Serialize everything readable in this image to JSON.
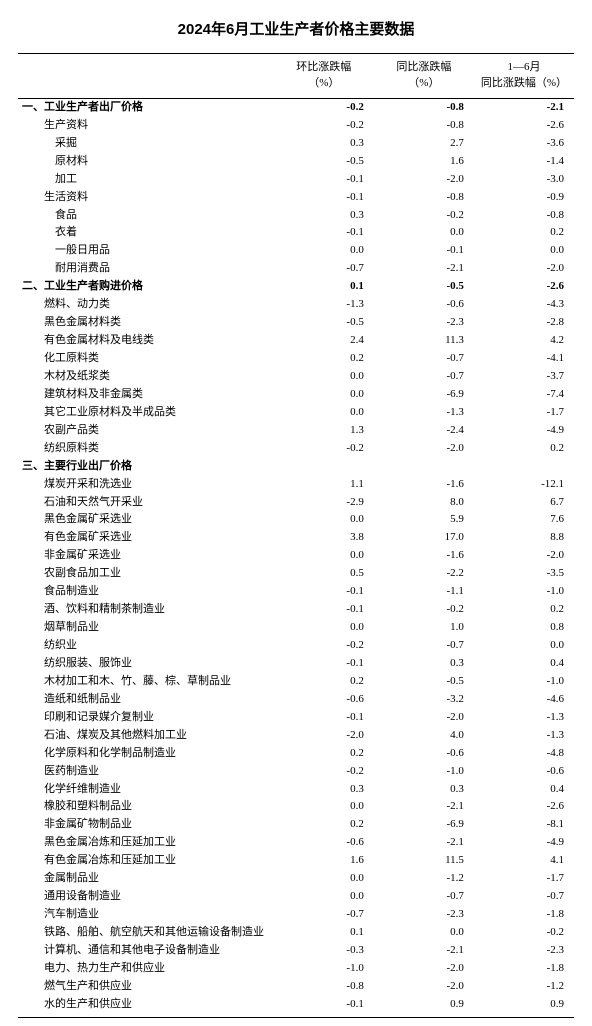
{
  "title": "2024年6月工业生产者价格主要数据",
  "columns": {
    "c0": "",
    "c1": "环比涨跌幅\n（%）",
    "c2": "同比涨跌幅\n（%）",
    "c3": "1—6月\n同比涨跌幅（%）"
  },
  "rows": [
    {
      "section": true,
      "indent": 0,
      "label": "一、工业生产者出厂价格",
      "v": [
        "-0.2",
        "-0.8",
        "-2.1"
      ]
    },
    {
      "indent": 2,
      "label": "生产资料",
      "v": [
        "-0.2",
        "-0.8",
        "-2.6"
      ]
    },
    {
      "indent": 3,
      "label": "采掘",
      "v": [
        "0.3",
        "2.7",
        "-3.6"
      ]
    },
    {
      "indent": 3,
      "label": "原材料",
      "v": [
        "-0.5",
        "1.6",
        "-1.4"
      ]
    },
    {
      "indent": 3,
      "label": "加工",
      "v": [
        "-0.1",
        "-2.0",
        "-3.0"
      ]
    },
    {
      "indent": 2,
      "label": "生活资料",
      "v": [
        "-0.1",
        "-0.8",
        "-0.9"
      ]
    },
    {
      "indent": 3,
      "label": "食品",
      "v": [
        "0.3",
        "-0.2",
        "-0.8"
      ]
    },
    {
      "indent": 3,
      "label": "衣着",
      "v": [
        "-0.1",
        "0.0",
        "0.2"
      ]
    },
    {
      "indent": 3,
      "label": "一般日用品",
      "v": [
        "0.0",
        "-0.1",
        "0.0"
      ]
    },
    {
      "indent": 3,
      "label": "耐用消费品",
      "v": [
        "-0.7",
        "-2.1",
        "-2.0"
      ]
    },
    {
      "section": true,
      "indent": 0,
      "label": "二、工业生产者购进价格",
      "v": [
        "0.1",
        "-0.5",
        "-2.6"
      ]
    },
    {
      "indent": 2,
      "label": "燃料、动力类",
      "v": [
        "-1.3",
        "-0.6",
        "-4.3"
      ]
    },
    {
      "indent": 2,
      "label": "黑色金属材料类",
      "v": [
        "-0.5",
        "-2.3",
        "-2.8"
      ]
    },
    {
      "indent": 2,
      "label": "有色金属材料及电线类",
      "v": [
        "2.4",
        "11.3",
        "4.2"
      ]
    },
    {
      "indent": 2,
      "label": "化工原料类",
      "v": [
        "0.2",
        "-0.7",
        "-4.1"
      ]
    },
    {
      "indent": 2,
      "label": "木材及纸浆类",
      "v": [
        "0.0",
        "-0.7",
        "-3.7"
      ]
    },
    {
      "indent": 2,
      "label": "建筑材料及非金属类",
      "v": [
        "0.0",
        "-6.9",
        "-7.4"
      ]
    },
    {
      "indent": 2,
      "label": "其它工业原材料及半成品类",
      "v": [
        "0.0",
        "-1.3",
        "-1.7"
      ]
    },
    {
      "indent": 2,
      "label": "农副产品类",
      "v": [
        "1.3",
        "-2.4",
        "-4.9"
      ]
    },
    {
      "indent": 2,
      "label": "纺织原料类",
      "v": [
        "-0.2",
        "-2.0",
        "0.2"
      ]
    },
    {
      "section": true,
      "indent": 0,
      "label": "三、主要行业出厂价格",
      "v": [
        "",
        "",
        ""
      ]
    },
    {
      "indent": 2,
      "label": "煤炭开采和洗选业",
      "v": [
        "1.1",
        "-1.6",
        "-12.1"
      ]
    },
    {
      "indent": 2,
      "label": "石油和天然气开采业",
      "v": [
        "-2.9",
        "8.0",
        "6.7"
      ]
    },
    {
      "indent": 2,
      "label": "黑色金属矿采选业",
      "v": [
        "0.0",
        "5.9",
        "7.6"
      ]
    },
    {
      "indent": 2,
      "label": "有色金属矿采选业",
      "v": [
        "3.8",
        "17.0",
        "8.8"
      ]
    },
    {
      "indent": 2,
      "label": "非金属矿采选业",
      "v": [
        "0.0",
        "-1.6",
        "-2.0"
      ]
    },
    {
      "indent": 2,
      "label": "农副食品加工业",
      "v": [
        "0.5",
        "-2.2",
        "-3.5"
      ]
    },
    {
      "indent": 2,
      "label": "食品制造业",
      "v": [
        "-0.1",
        "-1.1",
        "-1.0"
      ]
    },
    {
      "indent": 2,
      "label": "酒、饮料和精制茶制造业",
      "v": [
        "-0.1",
        "-0.2",
        "0.2"
      ]
    },
    {
      "indent": 2,
      "label": "烟草制品业",
      "v": [
        "0.0",
        "1.0",
        "0.8"
      ]
    },
    {
      "indent": 2,
      "label": "纺织业",
      "v": [
        "-0.2",
        "-0.7",
        "0.0"
      ]
    },
    {
      "indent": 2,
      "label": "纺织服装、服饰业",
      "v": [
        "-0.1",
        "0.3",
        "0.4"
      ]
    },
    {
      "indent": 2,
      "label": "木材加工和木、竹、藤、棕、草制品业",
      "v": [
        "0.2",
        "-0.5",
        "-1.0"
      ]
    },
    {
      "indent": 2,
      "label": "造纸和纸制品业",
      "v": [
        "-0.6",
        "-3.2",
        "-4.6"
      ]
    },
    {
      "indent": 2,
      "label": "印刷和记录媒介复制业",
      "v": [
        "-0.1",
        "-2.0",
        "-1.3"
      ]
    },
    {
      "indent": 2,
      "label": "石油、煤炭及其他燃料加工业",
      "v": [
        "-2.0",
        "4.0",
        "-1.3"
      ]
    },
    {
      "indent": 2,
      "label": "化学原料和化学制品制造业",
      "v": [
        "0.2",
        "-0.6",
        "-4.8"
      ]
    },
    {
      "indent": 2,
      "label": "医药制造业",
      "v": [
        "-0.2",
        "-1.0",
        "-0.6"
      ]
    },
    {
      "indent": 2,
      "label": "化学纤维制造业",
      "v": [
        "0.3",
        "0.3",
        "0.4"
      ]
    },
    {
      "indent": 2,
      "label": "橡胶和塑料制品业",
      "v": [
        "0.0",
        "-2.1",
        "-2.6"
      ]
    },
    {
      "indent": 2,
      "label": "非金属矿物制品业",
      "v": [
        "0.2",
        "-6.9",
        "-8.1"
      ]
    },
    {
      "indent": 2,
      "label": "黑色金属冶炼和压延加工业",
      "v": [
        "-0.6",
        "-2.1",
        "-4.9"
      ]
    },
    {
      "indent": 2,
      "label": "有色金属冶炼和压延加工业",
      "v": [
        "1.6",
        "11.5",
        "4.1"
      ]
    },
    {
      "indent": 2,
      "label": "金属制品业",
      "v": [
        "0.0",
        "-1.2",
        "-1.7"
      ]
    },
    {
      "indent": 2,
      "label": "通用设备制造业",
      "v": [
        "0.0",
        "-0.7",
        "-0.7"
      ]
    },
    {
      "indent": 2,
      "label": "汽车制造业",
      "v": [
        "-0.7",
        "-2.3",
        "-1.8"
      ]
    },
    {
      "indent": 2,
      "label": "铁路、船舶、航空航天和其他运输设备制造业",
      "v": [
        "0.1",
        "0.0",
        "-0.2"
      ]
    },
    {
      "indent": 2,
      "label": "计算机、通信和其他电子设备制造业",
      "v": [
        "-0.3",
        "-2.1",
        "-2.3"
      ]
    },
    {
      "indent": 2,
      "label": "电力、热力生产和供应业",
      "v": [
        "-1.0",
        "-2.0",
        "-1.8"
      ]
    },
    {
      "indent": 2,
      "label": "燃气生产和供应业",
      "v": [
        "-0.8",
        "-2.0",
        "-1.2"
      ]
    },
    {
      "indent": 2,
      "label": "水的生产和供应业",
      "v": [
        "-0.1",
        "0.9",
        "0.9"
      ]
    }
  ]
}
